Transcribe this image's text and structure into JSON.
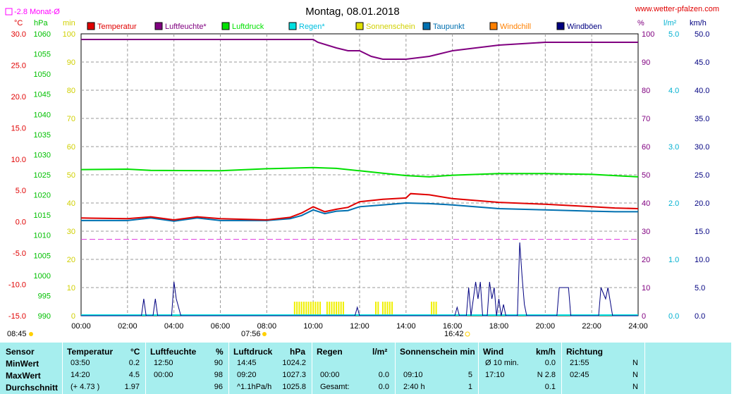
{
  "title": "Montag, 08.01.2018",
  "site": "www.wetter-pfalzen.com",
  "month_avg_label": "-2.8 Monat-Ø",
  "units": {
    "temp": "°C",
    "pressure": "hPa",
    "sun": "min",
    "humidity": "%",
    "rain": "l/m²",
    "wind": "km/h"
  },
  "legend": [
    {
      "label": "Temperatur",
      "color": "#e00000"
    },
    {
      "label": "Luftfeuchte*",
      "color": "#800080"
    },
    {
      "label": "Luftdruck",
      "color": "#00e000"
    },
    {
      "label": "Regen*",
      "color": "#00e0e0"
    },
    {
      "label": "Sonnenschein",
      "color": "#e0e000"
    },
    {
      "label": "Taupunkt",
      "color": "#0070b0"
    },
    {
      "label": "Windchill",
      "color": "#ff8000"
    },
    {
      "label": "Windböen",
      "color": "#000080"
    }
  ],
  "axes": {
    "temp_ticks": [
      "30.0",
      "25.0",
      "20.0",
      "15.0",
      "10.0",
      "5.0",
      "0.0",
      "-5.0",
      "-10.0",
      "-15.0"
    ],
    "pressure_ticks": [
      "1060",
      "1055",
      "1050",
      "1045",
      "1040",
      "1035",
      "1030",
      "1025",
      "1020",
      "1015",
      "1010",
      "1005",
      "1000",
      "995",
      "990"
    ],
    "sun_ticks": [
      "100",
      "90",
      "80",
      "70",
      "60",
      "50",
      "40",
      "30",
      "20",
      "10",
      "0"
    ],
    "hum_ticks": [
      "100",
      "90",
      "80",
      "70",
      "60",
      "50",
      "40",
      "30",
      "20",
      "10",
      "0"
    ],
    "rain_ticks": [
      "5.0",
      "4.0",
      "3.0",
      "2.0",
      "1.0",
      "0.0"
    ],
    "wind_ticks": [
      "50.0",
      "45.0",
      "40.0",
      "35.0",
      "30.0",
      "25.0",
      "20.0",
      "15.0",
      "10.0",
      "5.0",
      "0.0"
    ],
    "x_ticks": [
      "00:00",
      "02:00",
      "04:00",
      "06:00",
      "08:00",
      "10:00",
      "12:00",
      "14:00",
      "16:00",
      "18:00",
      "20:00",
      "22:00",
      "24:00"
    ]
  },
  "sun_times": {
    "prev_sunset": "08:45",
    "sunrise": "07:56",
    "sunset": "16:42"
  },
  "chart_data": {
    "type": "line",
    "x_unit": "hours",
    "x_range": [
      0,
      24
    ],
    "month_avg_temperature": -2.8,
    "series": [
      {
        "name": "Luftfeuchte*",
        "unit": "%",
        "x": [
          0,
          10,
          10.2,
          11,
          11.5,
          12,
          12.5,
          13,
          14,
          15,
          15.5,
          16,
          18,
          20,
          22,
          24
        ],
        "values": [
          98,
          98,
          97,
          95,
          94,
          94,
          92,
          91,
          91,
          92,
          93,
          94,
          96,
          97,
          97,
          97
        ]
      },
      {
        "name": "Luftdruck",
        "unit": "hPa",
        "x": [
          0,
          2,
          3,
          6,
          8,
          10,
          11,
          12,
          13,
          14,
          15,
          16,
          18,
          20,
          22,
          24
        ],
        "values": [
          1026.3,
          1026.4,
          1026.1,
          1026,
          1026.5,
          1026.8,
          1026.6,
          1026,
          1025.4,
          1024.8,
          1024.5,
          1024.9,
          1025.3,
          1025.3,
          1025.1,
          1024.5
        ]
      },
      {
        "name": "Temperatur",
        "unit": "°C",
        "x": [
          0,
          2,
          3,
          4,
          5,
          6,
          7,
          8,
          9,
          9.5,
          10,
          10.5,
          11,
          11.5,
          12,
          13,
          14,
          14.2,
          15,
          16,
          18,
          20,
          22,
          23,
          24
        ],
        "values": [
          0.6,
          0.5,
          0.8,
          0.3,
          0.8,
          0.5,
          0.4,
          0.3,
          0.7,
          1.4,
          2.4,
          1.6,
          2.0,
          2.3,
          3.2,
          3.6,
          3.8,
          4.5,
          4.3,
          3.7,
          3.1,
          2.8,
          2.4,
          2.2,
          2.1
        ]
      },
      {
        "name": "Taupunkt",
        "unit": "°C",
        "x": [
          0,
          2,
          3,
          4,
          5,
          6,
          7,
          8,
          9,
          9.5,
          10,
          10.5,
          11,
          11.5,
          12,
          13,
          14,
          15,
          16,
          18,
          20,
          22,
          23,
          24
        ],
        "values": [
          0.2,
          0.2,
          0.6,
          0.1,
          0.6,
          0.2,
          0.2,
          0.2,
          0.5,
          1.0,
          1.9,
          1.3,
          1.7,
          1.8,
          2.4,
          2.7,
          3.0,
          2.9,
          2.7,
          2.1,
          1.9,
          1.7,
          1.6,
          1.6
        ]
      },
      {
        "name": "Windböen",
        "unit": "km/h",
        "x": [
          0,
          2.6,
          2.7,
          2.8,
          3.1,
          3.2,
          3.3,
          3.9,
          4.0,
          4.1,
          4.3,
          11.8,
          11.9,
          12.0,
          16.1,
          16.2,
          16.3,
          16.6,
          16.7,
          16.8,
          16.9,
          17.0,
          17.1,
          17.2,
          17.3,
          17.5,
          17.6,
          17.7,
          17.8,
          17.9,
          18.0,
          18.1,
          18.2,
          18.3,
          18.8,
          18.9,
          19.0,
          19.1,
          19.2,
          20.5,
          20.6,
          21.0,
          21.1,
          22.3,
          22.4,
          22.6,
          22.7,
          22.9,
          24
        ],
        "values": [
          0,
          0,
          3,
          0,
          0,
          3,
          0,
          0,
          6,
          3,
          0,
          0,
          1.5,
          0,
          0,
          1.5,
          0,
          0,
          5,
          0,
          3,
          6,
          3,
          6,
          0,
          0,
          6,
          3,
          5,
          0,
          3,
          0,
          2,
          0,
          0,
          13,
          7,
          2,
          0,
          0,
          5,
          5,
          0,
          0,
          5,
          3,
          5,
          0,
          0
        ]
      },
      {
        "name": "Sonnenschein",
        "unit": "min",
        "type": "bar",
        "intervals": [
          [
            9.2,
            10.3
          ],
          [
            10.6,
            11.3
          ],
          [
            12.7,
            12.8
          ],
          [
            13.0,
            13.4
          ],
          [
            15.1,
            15.3
          ]
        ],
        "values": [
          5,
          5,
          5,
          5,
          5
        ]
      }
    ]
  },
  "table": {
    "headers": {
      "sensor": "Sensor",
      "temp": "Temperatur",
      "temp_unit": "°C",
      "hum": "Luftfeuchte",
      "hum_unit": "%",
      "press": "Luftdruck",
      "press_unit": "hPa",
      "rain": "Regen",
      "rain_unit": "l/m²",
      "sun": "Sonnenschein min",
      "wind": "Wind",
      "wind_unit": "km/h",
      "dir": "Richtung"
    },
    "rows": [
      {
        "label": "MinWert",
        "t_time": "03:50",
        "t_val": "0.2",
        "h_time": "12:50",
        "h_val": "90",
        "p_time": "14:45",
        "p_val": "1024.2",
        "r_time": "",
        "r_val": "",
        "s_time": "",
        "s_val": "",
        "w_label": "Ø 10 min.",
        "w_val": "0.0",
        "d_time": "21:55",
        "d_val": "N"
      },
      {
        "label": "MaxWert",
        "t_time": "14:20",
        "t_val": "4.5",
        "h_time": "00:00",
        "h_val": "98",
        "p_time": "09:20",
        "p_val": "1027.3",
        "r_time": "00:00",
        "r_val": "0.0",
        "s_time": "09:10",
        "s_val": "5",
        "w_label": "17:10",
        "w_val": "N 2.8",
        "d_time": "02:45",
        "d_val": "N"
      },
      {
        "label": "Durchschnitt",
        "t_time": "(+ 4.73 )",
        "t_val": "1.97",
        "h_time": "",
        "h_val": "96",
        "p_time": "^1.1hPa/h",
        "p_val": "1025.8",
        "r_time": "Gesamt:",
        "r_val": "0.0",
        "s_time": "2:40 h",
        "s_val": "1",
        "w_label": "",
        "w_val": "0.1",
        "d_time": "",
        "d_val": "N"
      }
    ]
  }
}
